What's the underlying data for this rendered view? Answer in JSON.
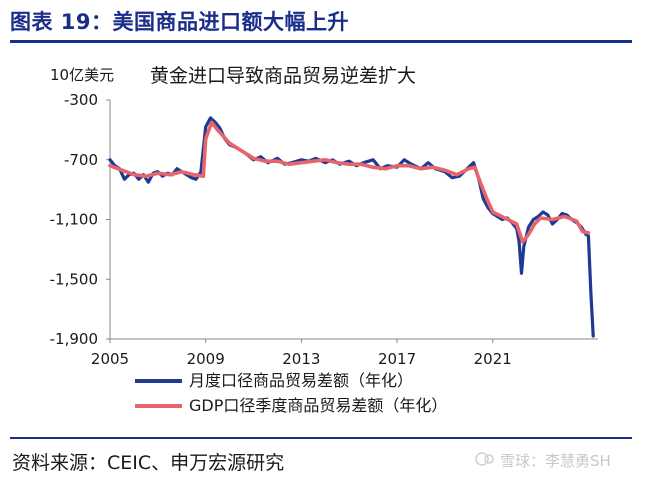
{
  "figure": {
    "title": "图表 19：美国商品进口额大幅上升",
    "unit": "10亿美元",
    "subtitle": "黄金进口导致商品贸易逆差扩大",
    "source": "资料来源：CEIC、申万宏源研究",
    "watermark": "雪球：李慧勇SH"
  },
  "colors": {
    "accent": "#1a2d8a",
    "series_monthly": "#1f3a93",
    "series_gdp": "#e8646c"
  },
  "chart_data": {
    "type": "line",
    "ylim": [
      -1900,
      -300
    ],
    "yticks": [
      -300,
      -700,
      -1100,
      -1500,
      -1900
    ],
    "ytick_labels": [
      "-300",
      "-700",
      "-1,100",
      "-1,500",
      "-1,900"
    ],
    "xlim": [
      2005.0,
      2025.4
    ],
    "xticks": [
      2005,
      2009,
      2013,
      2017,
      2021
    ],
    "xtick_labels": [
      "2005",
      "2009",
      "2013",
      "2017",
      "2021"
    ],
    "grid": false,
    "legend_position": "bottom",
    "series": [
      {
        "name": "月度口径商品贸易差额（年化）",
        "x": [
          2005.0,
          2005.2,
          2005.4,
          2005.6,
          2005.8,
          2006.0,
          2006.2,
          2006.4,
          2006.6,
          2006.8,
          2007.0,
          2007.2,
          2007.4,
          2007.6,
          2007.8,
          2008.0,
          2008.2,
          2008.4,
          2008.6,
          2008.8,
          2009.0,
          2009.2,
          2009.4,
          2009.6,
          2009.8,
          2010.0,
          2010.3,
          2010.6,
          2011.0,
          2011.3,
          2011.6,
          2012.0,
          2012.3,
          2012.6,
          2013.0,
          2013.3,
          2013.6,
          2014.0,
          2014.3,
          2014.6,
          2015.0,
          2015.3,
          2015.6,
          2016.0,
          2016.3,
          2016.6,
          2017.0,
          2017.3,
          2017.6,
          2018.0,
          2018.3,
          2018.6,
          2019.0,
          2019.3,
          2019.6,
          2020.0,
          2020.2,
          2020.4,
          2020.6,
          2020.8,
          2021.0,
          2021.2,
          2021.4,
          2021.6,
          2021.8,
          2022.0,
          2022.1,
          2022.2,
          2022.3,
          2022.5,
          2022.7,
          2022.9,
          2023.1,
          2023.3,
          2023.5,
          2023.7,
          2023.9,
          2024.1,
          2024.3,
          2024.5,
          2024.7,
          2024.9,
          2025.0,
          2025.1,
          2025.2
        ],
        "y": [
          -700,
          -740,
          -760,
          -830,
          -800,
          -790,
          -830,
          -800,
          -850,
          -790,
          -780,
          -810,
          -790,
          -800,
          -760,
          -780,
          -800,
          -820,
          -830,
          -780,
          -480,
          -420,
          -450,
          -490,
          -560,
          -600,
          -620,
          -650,
          -700,
          -680,
          -720,
          -690,
          -730,
          -720,
          -700,
          -710,
          -690,
          -720,
          -700,
          -730,
          -710,
          -740,
          -720,
          -700,
          -760,
          -740,
          -750,
          -700,
          -730,
          -760,
          -720,
          -760,
          -780,
          -820,
          -810,
          -750,
          -720,
          -820,
          -960,
          -1020,
          -1060,
          -1080,
          -1100,
          -1090,
          -1120,
          -1160,
          -1250,
          -1460,
          -1280,
          -1150,
          -1100,
          -1080,
          -1050,
          -1070,
          -1130,
          -1100,
          -1060,
          -1070,
          -1100,
          -1120,
          -1150,
          -1200,
          -1210,
          -1580,
          -1880
        ]
      },
      {
        "name": "GDP口径季度商品贸易差额（年化）",
        "x": [
          2005.0,
          2005.5,
          2006.0,
          2006.5,
          2007.0,
          2007.5,
          2008.0,
          2008.5,
          2008.9,
          2009.0,
          2009.25,
          2009.5,
          2010.0,
          2010.5,
          2011.0,
          2011.5,
          2012.0,
          2012.5,
          2013.0,
          2013.5,
          2014.0,
          2014.5,
          2015.0,
          2015.5,
          2016.0,
          2016.5,
          2017.0,
          2017.5,
          2018.0,
          2018.5,
          2019.0,
          2019.5,
          2020.0,
          2020.25,
          2020.5,
          2020.75,
          2021.0,
          2021.5,
          2022.0,
          2022.25,
          2022.5,
          2022.75,
          2023.0,
          2023.5,
          2024.0,
          2024.5,
          2024.75,
          2025.0
        ],
        "y": [
          -740,
          -770,
          -800,
          -810,
          -790,
          -800,
          -780,
          -800,
          -810,
          -560,
          -450,
          -500,
          -590,
          -640,
          -690,
          -710,
          -710,
          -730,
          -720,
          -710,
          -700,
          -720,
          -730,
          -730,
          -750,
          -760,
          -740,
          -740,
          -760,
          -750,
          -770,
          -800,
          -760,
          -750,
          -860,
          -960,
          -1050,
          -1090,
          -1130,
          -1250,
          -1200,
          -1130,
          -1090,
          -1100,
          -1080,
          -1110,
          -1180,
          -1190
        ]
      }
    ]
  }
}
